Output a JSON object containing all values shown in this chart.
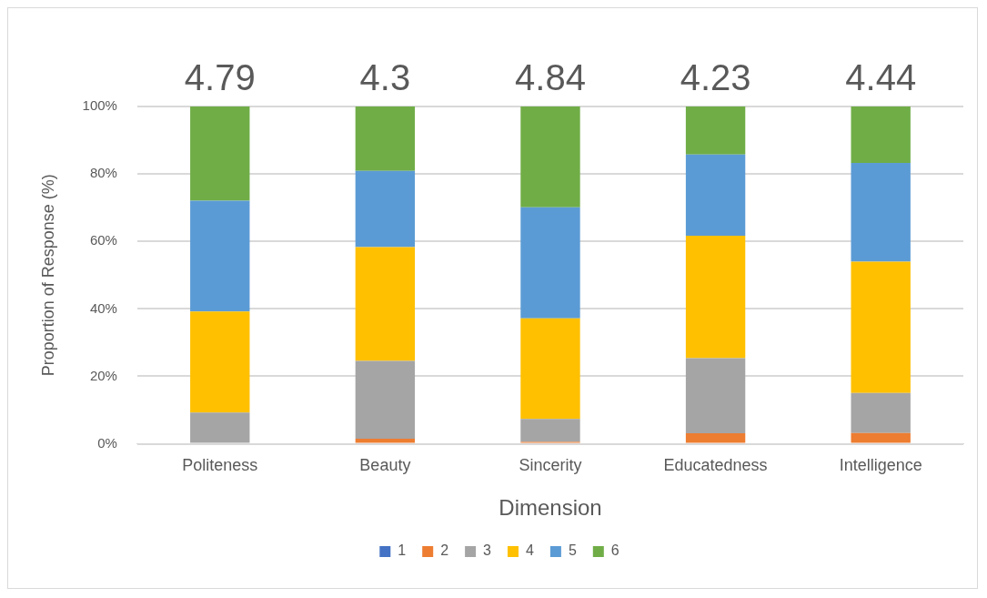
{
  "chart_data": {
    "type": "bar",
    "stacked": true,
    "xlabel": "Dimension",
    "ylabel": "Proportion of Response (%)",
    "categories": [
      "Politeness",
      "Beauty",
      "Sincerity",
      "Educatedness",
      "Intelligence"
    ],
    "series": [
      {
        "name": "1",
        "color": "#4472c4",
        "values": [
          0,
          0,
          0,
          0,
          0
        ]
      },
      {
        "name": "2",
        "color": "#ed7d31",
        "values": [
          0,
          1.5,
          0.6,
          3.1,
          3.2
        ]
      },
      {
        "name": "3",
        "color": "#a5a5a5",
        "values": [
          9.3,
          23.1,
          6.8,
          22.3,
          11.9
        ]
      },
      {
        "name": "4",
        "color": "#ffc000",
        "values": [
          29.9,
          33.7,
          29.8,
          36.3,
          38.9
        ]
      },
      {
        "name": "5",
        "color": "#5b9bd5",
        "values": [
          32.9,
          22.6,
          32.9,
          24.1,
          29.3
        ]
      },
      {
        "name": "6",
        "color": "#70ad47",
        "values": [
          27.9,
          19.1,
          29.9,
          14.2,
          16.7
        ]
      }
    ],
    "ylim": [
      0,
      100
    ],
    "yticks": [
      {
        "value": 0,
        "label": "0%"
      },
      {
        "value": 20,
        "label": "20%"
      },
      {
        "value": 40,
        "label": "40%"
      },
      {
        "value": 60,
        "label": "60%"
      },
      {
        "value": 80,
        "label": "80%"
      },
      {
        "value": 100,
        "label": "100%"
      }
    ],
    "grid": "y",
    "legend": "bottom",
    "annotations": [
      "4.79",
      "4.3",
      "4.84",
      "4.23",
      "4.44"
    ]
  }
}
